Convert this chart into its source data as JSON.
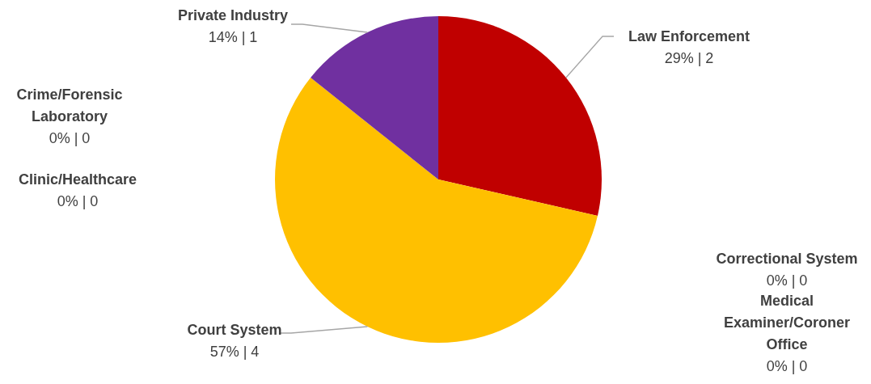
{
  "chart_data": {
    "type": "pie",
    "categories": [
      "Law Enforcement",
      "Correctional System",
      "Medical Examiner/Coroner Office",
      "Court System",
      "Clinic/Healthcare",
      "Crime/Forensic Laboratory",
      "Private Industry"
    ],
    "values": [
      2,
      0,
      0,
      4,
      0,
      0,
      1
    ],
    "colors": [
      "#c00000",
      "#4472c4",
      "#a5a5a5",
      "#ffc000",
      "#5b9bd5",
      "#70ad47",
      "#7030a0"
    ],
    "value_labels": [
      "29% | 2",
      "0% | 0",
      "0% | 0",
      "57% | 4",
      "0% | 0",
      "0% | 0",
      "14% | 1"
    ]
  }
}
